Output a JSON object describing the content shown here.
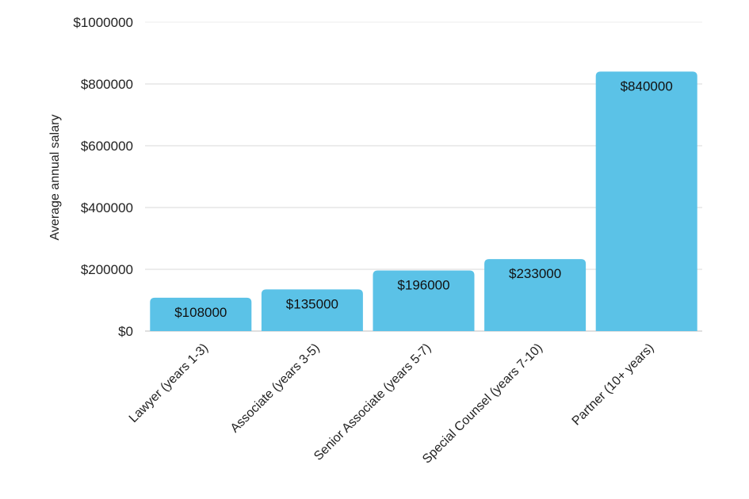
{
  "chart_data": {
    "type": "bar",
    "title": "",
    "xlabel": "",
    "ylabel": "Average annual salary",
    "categories": [
      "Lawyer (years 1-3)",
      "Associate (years 3-5)",
      "Senior Associate (years 5-7)",
      "Special Counsel (years 7-10)",
      "Partner (10+ years)"
    ],
    "values": [
      108000,
      135000,
      196000,
      233000,
      840000
    ],
    "data_labels": [
      "$108000",
      "$135000",
      "$196000",
      "$233000",
      "$840000"
    ],
    "ylim": [
      0,
      1000000
    ],
    "yticks": [
      0,
      200000,
      400000,
      600000,
      800000,
      1000000
    ],
    "ytick_labels": [
      "$0",
      "$200000",
      "$400000",
      "$600000",
      "$800000",
      "$1000000"
    ],
    "grid": true,
    "legend": "none",
    "bar_color": "#5bc2e7"
  }
}
